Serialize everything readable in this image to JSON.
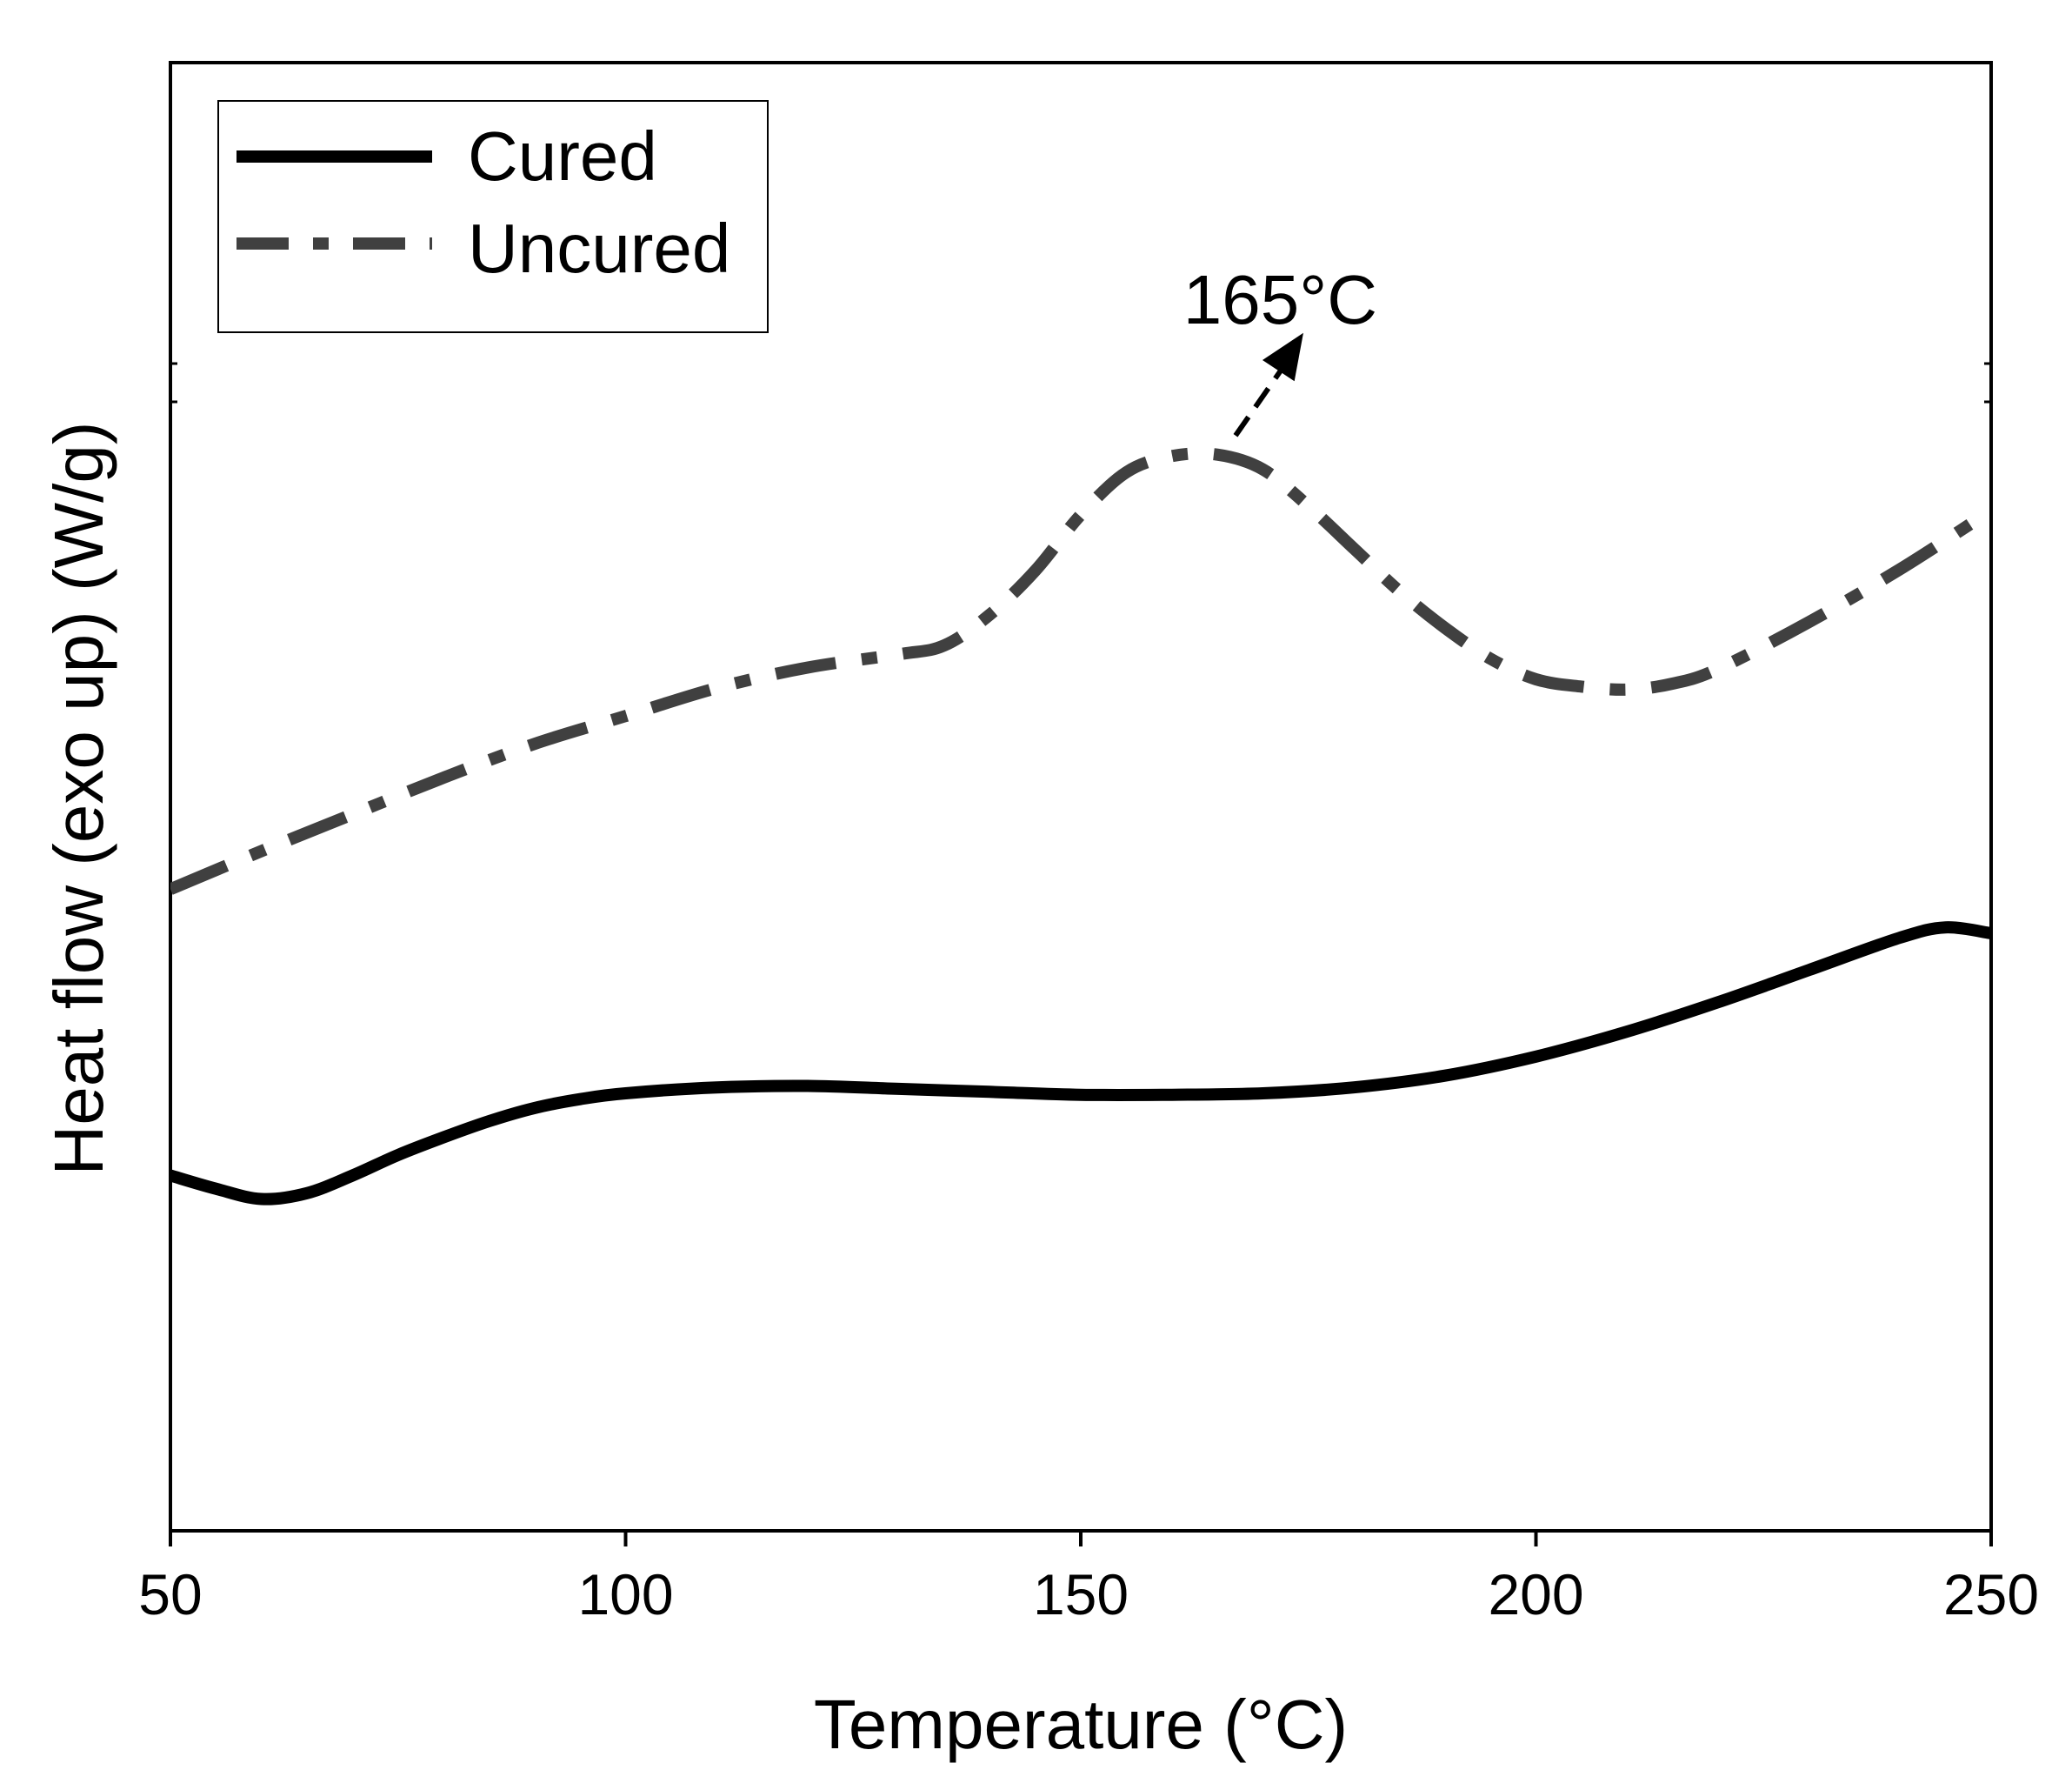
{
  "chart_data": {
    "type": "line",
    "title": "",
    "xlabel": "Temperature (°C)",
    "ylabel": "Heat flow (exo up) (W/g)",
    "xlim": [
      50,
      250
    ],
    "ylim": [
      0,
      100
    ],
    "xticks": [
      50,
      100,
      150,
      200,
      250
    ],
    "xtick_labels": [
      "50",
      "100",
      "150",
      "200",
      "250"
    ],
    "yticks_shown": false,
    "grid": false,
    "legend_position": "top-left",
    "colors": {
      "cured": "#000000",
      "uncured": "#404040"
    },
    "series": [
      {
        "name": "Cured",
        "style": "solid",
        "x": [
          50,
          55,
          60,
          65,
          70,
          75,
          80,
          85,
          90,
          95,
          100,
          110,
          120,
          130,
          140,
          150,
          160,
          170,
          180,
          190,
          200,
          210,
          220,
          230,
          240,
          245,
          250
        ],
        "y": [
          24.2,
          23.3,
          22.6,
          23.0,
          24.2,
          25.6,
          26.8,
          27.9,
          28.8,
          29.4,
          29.8,
          30.2,
          30.3,
          30.1,
          29.9,
          29.7,
          29.7,
          29.8,
          30.2,
          31.0,
          32.3,
          34.0,
          36.0,
          38.2,
          40.4,
          41.1,
          40.7
        ]
      },
      {
        "name": "Uncured",
        "style": "dash-dot",
        "x": [
          50,
          60,
          70,
          80,
          90,
          100,
          110,
          120,
          130,
          135,
          140,
          145,
          150,
          155,
          160,
          165,
          170,
          175,
          180,
          185,
          190,
          195,
          200,
          205,
          210,
          215,
          220,
          230,
          240,
          250
        ],
        "y": [
          43.7,
          46.3,
          48.8,
          51.3,
          53.6,
          55.5,
          57.4,
          58.8,
          59.7,
          60.3,
          62.4,
          65.4,
          69.2,
          72.1,
          73.2,
          73.3,
          72.3,
          69.8,
          66.9,
          64.0,
          61.5,
          59.4,
          58.0,
          57.5,
          57.3,
          57.7,
          58.7,
          61.9,
          65.5,
          69.5
        ]
      }
    ],
    "annotations": [
      {
        "text": "165°C",
        "points_to": {
          "x": 167,
          "y": 74.6
        },
        "label_near": {
          "x": 170,
          "y": 84
        }
      }
    ]
  }
}
